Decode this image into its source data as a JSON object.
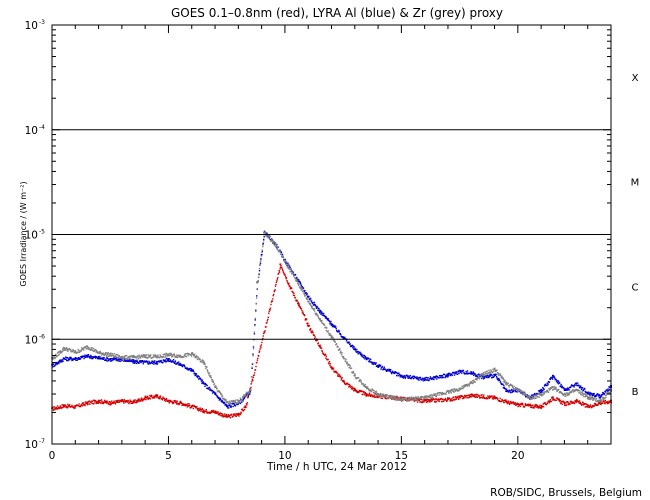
{
  "chart_data": {
    "type": "scatter",
    "title": "GOES 0.1–0.8nm (red), LYRA Al (blue) & Zr (grey) proxy",
    "xlabel": "Time / h UTC, 24 Mar 2012",
    "ylabel": "GOES Irradiance / (W m⁻²)",
    "xlim": [
      0,
      24
    ],
    "ylim": [
      1e-07,
      0.001
    ],
    "y_scale": "log",
    "grid": false,
    "x_ticks": [
      0,
      5,
      10,
      15,
      20
    ],
    "x_tick_labels": [
      "0",
      "5",
      "10",
      "15",
      "20"
    ],
    "y_ticks": [
      {
        "value": 1e-07,
        "base": "10",
        "exp": "-7"
      },
      {
        "value": 1e-06,
        "base": "10",
        "exp": "-6"
      },
      {
        "value": 1e-05,
        "base": "10",
        "exp": "-5"
      },
      {
        "value": 0.0001,
        "base": "10",
        "exp": "-4"
      },
      {
        "value": 0.001,
        "base": "10",
        "exp": "-3"
      }
    ],
    "flare_class_lines": [
      1e-06,
      1e-05,
      0.0001
    ],
    "flare_classes": [
      {
        "label": "X",
        "y": 0.00032
      },
      {
        "label": "M",
        "y": 3.2e-05
      },
      {
        "label": "C",
        "y": 3.2e-06
      },
      {
        "label": "B",
        "y": 3.2e-07
      }
    ],
    "series": [
      {
        "color": "#d40000",
        "x": [
          0,
          0.5,
          1,
          1.5,
          2,
          2.5,
          3,
          3.5,
          4,
          4.5,
          5,
          5.5,
          6,
          6.5,
          7,
          7.5,
          8,
          8.3,
          9.8,
          10.2,
          10.6,
          11,
          11.5,
          12,
          12.5,
          13,
          13.5,
          14,
          15,
          16,
          17,
          18,
          19,
          19.5,
          20,
          20.5,
          21,
          21.5,
          22,
          22.5,
          23,
          23.5,
          24
        ],
        "values": [
          2.2e-07,
          2.35e-07,
          2.3e-07,
          2.5e-07,
          2.6e-07,
          2.5e-07,
          2.6e-07,
          2.55e-07,
          2.8e-07,
          2.9e-07,
          2.6e-07,
          2.5e-07,
          2.3e-07,
          2.1e-07,
          2.05e-07,
          1.85e-07,
          1.95e-07,
          2.3e-07,
          5.2e-06,
          3.2e-06,
          2.1e-06,
          1.35e-06,
          8.5e-07,
          5.4e-07,
          4e-07,
          3.3e-07,
          3e-07,
          2.9e-07,
          2.75e-07,
          2.6e-07,
          2.7e-07,
          2.95e-07,
          2.8e-07,
          2.55e-07,
          2.4e-07,
          2.35e-07,
          2.3e-07,
          2.8e-07,
          2.45e-07,
          2.6e-07,
          2.3e-07,
          2.5e-07,
          2.6e-07
        ]
      },
      {
        "color": "#0000d0",
        "x": [
          0,
          0.5,
          1,
          1.5,
          2,
          2.5,
          3,
          3.5,
          4,
          4.5,
          5,
          5.5,
          6,
          6.5,
          7,
          7.5,
          8,
          8.5,
          8.8,
          9.1,
          9.3,
          9.6,
          10,
          10.5,
          11,
          11.5,
          12,
          12.5,
          13,
          13.5,
          14,
          15,
          16,
          17,
          17.5,
          18,
          18.5,
          19,
          19.5,
          20,
          20.5,
          21,
          21.5,
          22,
          22.5,
          23,
          23.5,
          24
        ],
        "values": [
          5.7e-07,
          6.6e-07,
          6.6e-07,
          7e-07,
          6.7e-07,
          6.5e-07,
          6.5e-07,
          6.2e-07,
          6.1e-07,
          6.1e-07,
          6.5e-07,
          5.8e-07,
          5.1e-07,
          3.8e-07,
          3e-07,
          2.3e-07,
          2.5e-07,
          3.2e-07,
          3.5e-06,
          1.05e-05,
          9.6e-06,
          8e-06,
          5.6e-06,
          3.8e-06,
          2.55e-06,
          1.85e-06,
          1.4e-06,
          1.05e-06,
          8e-07,
          6.6e-07,
          5.6e-07,
          4.5e-07,
          4.2e-07,
          4.6e-07,
          5e-07,
          4.8e-07,
          4.4e-07,
          4.6e-07,
          3.2e-07,
          3.3e-07,
          2.8e-07,
          3.3e-07,
          4.5e-07,
          3.3e-07,
          3.8e-07,
          3.1e-07,
          2.9e-07,
          3.6e-07
        ]
      },
      {
        "color": "#808080",
        "x": [
          0,
          0.5,
          1,
          1.5,
          2,
          2.5,
          3,
          3.5,
          4,
          4.5,
          5,
          5.5,
          6,
          6.5,
          7,
          7.5,
          8,
          8.5,
          8.8,
          9.1,
          9.3,
          9.6,
          10,
          10.5,
          11,
          11.5,
          12,
          12.5,
          13,
          13.5,
          14,
          15,
          16,
          17,
          17.5,
          18,
          18.5,
          19,
          19.5,
          20,
          20.5,
          21,
          21.5,
          22,
          22.5,
          23,
          23.5,
          24
        ],
        "values": [
          6.6e-07,
          8.3e-07,
          7.6e-07,
          8.6e-07,
          7.5e-07,
          7.2e-07,
          6.8e-07,
          6.8e-07,
          7e-07,
          6.9e-07,
          7.2e-07,
          7e-07,
          7.3e-07,
          6e-07,
          3.5e-07,
          2.5e-07,
          2.6e-07,
          3.3e-07,
          3.5e-06,
          1.05e-05,
          9.6e-06,
          7.9e-06,
          5.5e-06,
          3.6e-06,
          2.3e-06,
          1.55e-06,
          1.05e-06,
          6.8e-07,
          4.5e-07,
          3.5e-07,
          3e-07,
          2.7e-07,
          2.8e-07,
          3.2e-07,
          3.4e-07,
          3.9e-07,
          4.7e-07,
          5.2e-07,
          3.8e-07,
          3.3e-07,
          2.8e-07,
          3e-07,
          3.5e-07,
          3e-07,
          3.3e-07,
          2.8e-07,
          2.6e-07,
          3.3e-07
        ]
      }
    ]
  },
  "credit": "ROB/SIDC, Brussels, Belgium"
}
